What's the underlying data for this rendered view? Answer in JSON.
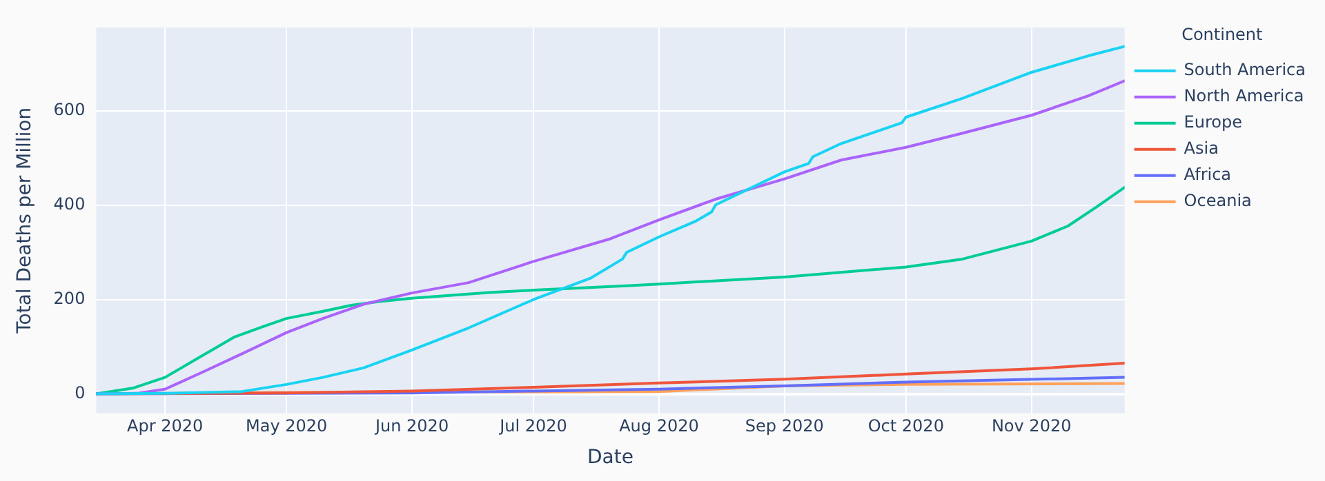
{
  "chart_data": {
    "type": "line",
    "xlabel": "Date",
    "ylabel": "Total Deaths per Million",
    "legend_title": "Continent",
    "legend": "top right",
    "grid": true,
    "line_style": "solid",
    "marker": "none",
    "xlim": [
      "2020-03-15",
      "2020-11-24"
    ],
    "ylim": [
      -41,
      777
    ],
    "yticks": [
      0,
      200,
      400,
      600
    ],
    "xticks": [
      {
        "value": "2020-04-01",
        "label": "Apr 2020"
      },
      {
        "value": "2020-05-01",
        "label": "May 2020"
      },
      {
        "value": "2020-06-01",
        "label": "Jun 2020"
      },
      {
        "value": "2020-07-01",
        "label": "Jul 2020"
      },
      {
        "value": "2020-08-01",
        "label": "Aug 2020"
      },
      {
        "value": "2020-09-01",
        "label": "Sep 2020"
      },
      {
        "value": "2020-10-01",
        "label": "Oct 2020"
      },
      {
        "value": "2020-11-01",
        "label": "Nov 2020"
      }
    ],
    "series": [
      {
        "name": "South America",
        "color": "#19d3f3",
        "x": [
          "2020-03-15",
          "2020-04-01",
          "2020-04-20",
          "2020-05-01",
          "2020-05-10",
          "2020-05-20",
          "2020-06-01",
          "2020-06-15",
          "2020-07-01",
          "2020-07-15",
          "2020-07-23",
          "2020-07-24",
          "2020-08-01",
          "2020-08-10",
          "2020-08-14",
          "2020-08-15",
          "2020-09-01",
          "2020-09-07",
          "2020-09-08",
          "2020-09-15",
          "2020-09-30",
          "2020-10-01",
          "2020-10-15",
          "2020-11-01",
          "2020-11-15",
          "2020-11-24"
        ],
        "values": [
          0,
          1,
          5,
          20,
          35,
          55,
          93,
          140,
          200,
          245,
          286,
          300,
          333,
          366,
          386,
          401,
          471,
          489,
          503,
          531,
          575,
          587,
          627,
          682,
          717,
          737
        ]
      },
      {
        "name": "North America",
        "color": "#ab63fa",
        "x": [
          "2020-03-15",
          "2020-03-25",
          "2020-04-01",
          "2020-04-10",
          "2020-04-20",
          "2020-05-01",
          "2020-05-10",
          "2020-05-20",
          "2020-06-01",
          "2020-06-15",
          "2020-07-01",
          "2020-07-20",
          "2020-08-01",
          "2020-08-15",
          "2020-09-01",
          "2020-09-15",
          "2020-10-01",
          "2020-10-15",
          "2020-11-01",
          "2020-11-15",
          "2020-11-24"
        ],
        "values": [
          0,
          1,
          10,
          45,
          85,
          130,
          160,
          190,
          214,
          236,
          281,
          329,
          369,
          413,
          456,
          496,
          523,
          553,
          591,
          632,
          664
        ]
      },
      {
        "name": "Europe",
        "color": "#00cc96",
        "x": [
          "2020-03-15",
          "2020-03-24",
          "2020-04-01",
          "2020-04-10",
          "2020-04-18",
          "2020-04-25",
          "2020-05-01",
          "2020-05-10",
          "2020-05-17",
          "2020-05-24",
          "2020-06-01",
          "2020-06-20",
          "2020-07-01",
          "2020-07-23",
          "2020-08-01",
          "2020-09-01",
          "2020-10-01",
          "2020-10-15",
          "2020-11-01",
          "2020-11-10",
          "2020-11-17",
          "2020-11-24"
        ],
        "values": [
          0,
          12,
          35,
          80,
          120,
          142,
          160,
          175,
          188,
          196,
          203,
          215,
          220,
          229,
          233,
          248,
          269,
          286,
          324,
          356,
          396,
          438
        ]
      },
      {
        "name": "Asia",
        "color": "#ef553b",
        "x": [
          "2020-03-15",
          "2020-05-01",
          "2020-06-01",
          "2020-07-01",
          "2020-08-01",
          "2020-09-01",
          "2020-10-01",
          "2020-11-01",
          "2020-11-24"
        ],
        "values": [
          0,
          2,
          6,
          14,
          23,
          31,
          42,
          53,
          65
        ]
      },
      {
        "name": "Africa",
        "color": "#636efa",
        "x": [
          "2020-03-15",
          "2020-05-01",
          "2020-06-01",
          "2020-07-01",
          "2020-08-01",
          "2020-09-01",
          "2020-10-01",
          "2020-11-24"
        ],
        "values": [
          0,
          1,
          2,
          6,
          10,
          17,
          25,
          35
        ]
      },
      {
        "name": "Oceania",
        "color": "#ffa15a",
        "x": [
          "2020-03-15",
          "2020-04-01",
          "2020-05-01",
          "2020-06-01",
          "2020-07-01",
          "2020-08-01",
          "2020-09-01",
          "2020-10-01",
          "2020-11-24"
        ],
        "values": [
          0,
          1,
          3,
          4,
          4,
          5,
          17,
          20,
          22
        ]
      }
    ]
  }
}
